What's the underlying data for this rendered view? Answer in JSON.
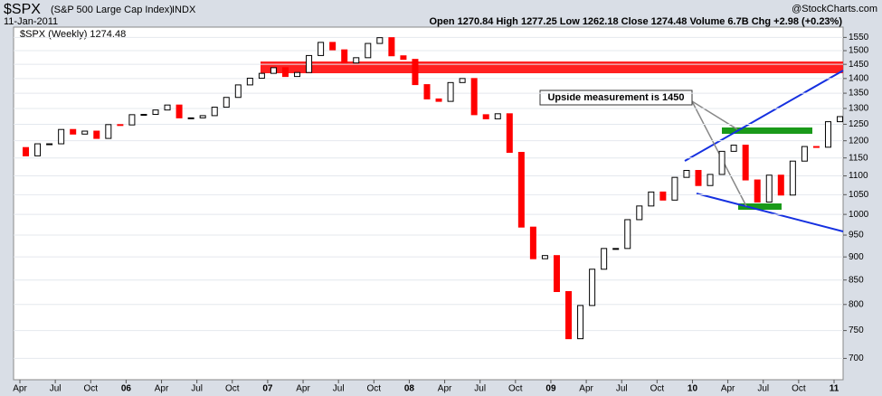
{
  "chart_data": {
    "type": "candlestick",
    "title": "$SPX",
    "subtitle": "(S&P 500 Large Cap Index)",
    "exchange": "INDX",
    "date": "11-Jan-2011",
    "quote": "Open 1270.84 High 1277.25 Low 1262.18 Close 1274.48 Volume 6.7B Chg +2.98 (+0.23%)",
    "credit": "@StockCharts.com",
    "legend": "$SPX (Weekly) 1274.48",
    "annotation": "Upside measurement is 1450",
    "log_scale": true,
    "up_color": "#000000",
    "down_color": "#ff0000",
    "ylim": [
      664,
      1590
    ],
    "yticks": [
      700,
      750,
      800,
      850,
      900,
      950,
      1000,
      1050,
      1100,
      1150,
      1200,
      1250,
      1300,
      1350,
      1400,
      1450,
      1500,
      1550
    ],
    "xticks": [
      "Apr",
      "Jul",
      "Oct",
      "06",
      "Apr",
      "Jul",
      "Oct",
      "07",
      "Apr",
      "Jul",
      "Oct",
      "08",
      "Apr",
      "Jul",
      "Oct",
      "09",
      "Apr",
      "Jul",
      "Oct",
      "10",
      "Apr",
      "Jul",
      "Oct",
      "11"
    ],
    "series": [
      {
        "name": "open",
        "values": [
          1180,
          1156,
          1191,
          1191,
          1234,
          1220,
          1229,
          1207,
          1249,
          1248,
          1280,
          1281,
          1295,
          1311,
          1270,
          1270,
          1277,
          1304,
          1336,
          1378,
          1401,
          1418,
          1438,
          1407,
          1421,
          1482,
          1531,
          1503,
          1455,
          1474,
          1527,
          1549,
          1481,
          1468,
          1379,
          1331,
          1323,
          1386,
          1400,
          1280,
          1267,
          1283,
          1166,
          969,
          896,
          903,
          826,
          735,
          798,
          873,
          919,
          919,
          987,
          1021,
          1057,
          1036,
          1096,
          1115,
          1074,
          1104,
          1169,
          1187,
          1089,
          1031,
          1102,
          1049,
          1141,
          1183,
          1181,
          1258
        ]
      },
      {
        "name": "close",
        "values": [
          1156,
          1191,
          1191,
          1234,
          1220,
          1229,
          1207,
          1249,
          1248,
          1280,
          1281,
          1295,
          1311,
          1270,
          1270,
          1277,
          1304,
          1336,
          1378,
          1401,
          1418,
          1438,
          1407,
          1421,
          1482,
          1531,
          1503,
          1455,
          1474,
          1527,
          1549,
          1481,
          1468,
          1379,
          1331,
          1323,
          1386,
          1400,
          1280,
          1267,
          1283,
          1166,
          969,
          896,
          903,
          826,
          735,
          798,
          873,
          919,
          919,
          987,
          1021,
          1057,
          1036,
          1096,
          1115,
          1074,
          1104,
          1169,
          1187,
          1089,
          1031,
          1102,
          1049,
          1141,
          1183,
          1181,
          1258,
          1274
        ]
      }
    ]
  }
}
